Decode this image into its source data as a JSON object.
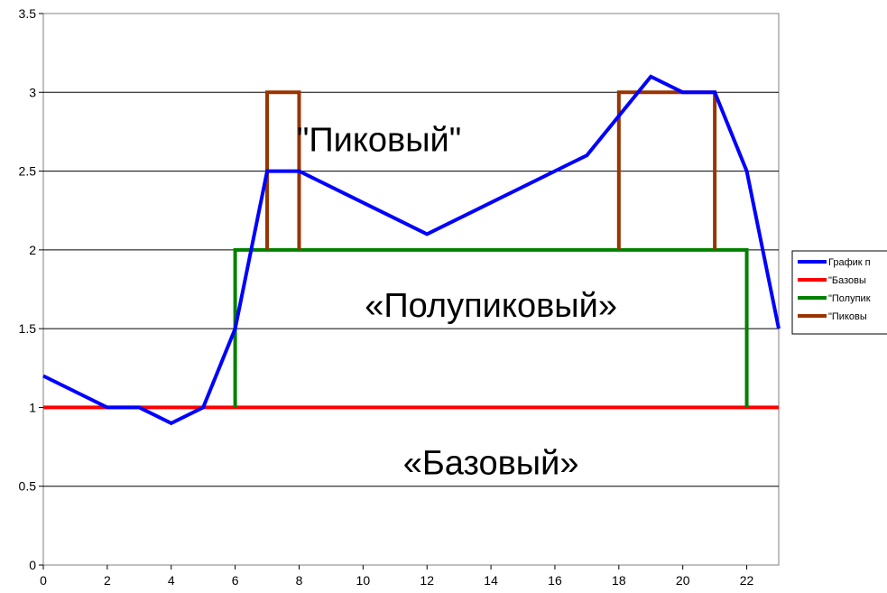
{
  "chart_data": {
    "type": "line",
    "title": "",
    "xlabel": "",
    "ylabel": "",
    "xlim": [
      0,
      23
    ],
    "ylim": [
      0,
      3.5
    ],
    "x_ticks": [
      0,
      2,
      4,
      6,
      8,
      10,
      12,
      14,
      16,
      18,
      20,
      22
    ],
    "y_ticks": [
      0,
      0.5,
      1,
      1.5,
      2,
      2.5,
      3,
      3.5
    ],
    "grid": "horizontal",
    "legend_position": "right",
    "series": [
      {
        "name": "График п",
        "color": "#0000ff",
        "points": [
          [
            0,
            1.2
          ],
          [
            2,
            1.0
          ],
          [
            3,
            1.0
          ],
          [
            4,
            0.9
          ],
          [
            5,
            1.0
          ],
          [
            6,
            1.5
          ],
          [
            7,
            2.5
          ],
          [
            8,
            2.5
          ],
          [
            12,
            2.1
          ],
          [
            17,
            2.6
          ],
          [
            19,
            3.1
          ],
          [
            20,
            3.0
          ],
          [
            21,
            3.0
          ],
          [
            22,
            2.5
          ],
          [
            23,
            1.5
          ]
        ]
      },
      {
        "name": "\"Базовы",
        "color": "#ff0000",
        "points": [
          [
            0,
            1
          ],
          [
            23,
            1
          ]
        ]
      },
      {
        "name": "\"Полупик",
        "color": "#008000",
        "points": [
          [
            6,
            1
          ],
          [
            6,
            2
          ],
          [
            22,
            2
          ],
          [
            22,
            1
          ]
        ]
      },
      {
        "name": "\"Пиковы",
        "color": "#993300",
        "segments": [
          [
            [
              7,
              2
            ],
            [
              7,
              3
            ],
            [
              8,
              3
            ],
            [
              8,
              2
            ]
          ],
          [
            [
              18,
              2
            ],
            [
              18,
              3
            ],
            [
              21,
              3
            ],
            [
              21,
              2
            ]
          ]
        ]
      }
    ],
    "annotations": [
      {
        "text": "\"Пиковый\"",
        "x": 10.5,
        "y": 2.7
      },
      {
        "text": "«Полупиковый»",
        "x": 14,
        "y": 1.65
      },
      {
        "text": "«Базовый»",
        "x": 14,
        "y": 0.65
      }
    ]
  }
}
